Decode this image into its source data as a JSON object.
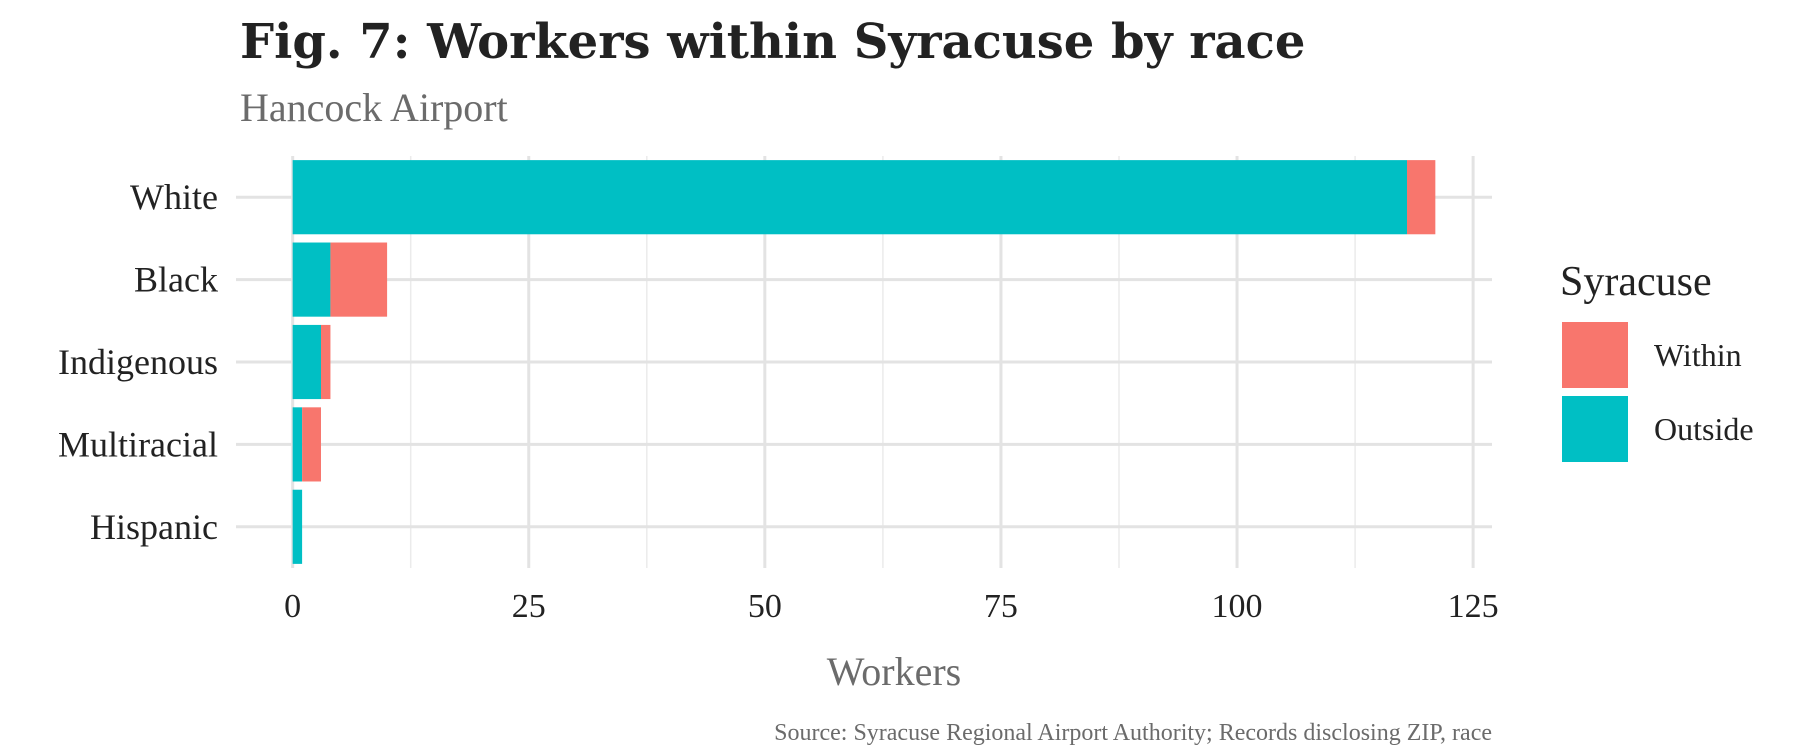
{
  "chart_data": {
    "type": "bar",
    "orientation": "horizontal",
    "stacked": true,
    "title": "Fig. 7: Workers within Syracuse by race",
    "subtitle": "Hancock Airport",
    "xlabel": "Workers",
    "ylabel": "",
    "caption": "Source: Syracuse Regional Airport Authority; Records disclosing ZIP, race",
    "categories": [
      "White",
      "Black",
      "Indigenous",
      "Multiracial",
      "Hispanic"
    ],
    "series": [
      {
        "name": "Outside",
        "values": [
          118,
          4,
          3,
          1,
          1
        ],
        "color": "#00BFC4"
      },
      {
        "name": "Within",
        "values": [
          3,
          6,
          1,
          2,
          0
        ],
        "color": "#F8766D"
      }
    ],
    "xlim": [
      -6,
      127
    ],
    "xticks": [
      0,
      25,
      50,
      75,
      100,
      125
    ],
    "grid": true,
    "legend": {
      "title": "Syracuse",
      "position": "right",
      "items": [
        {
          "name": "Within",
          "color": "#F8766D"
        },
        {
          "name": "Outside",
          "color": "#00BFC4"
        }
      ]
    }
  }
}
